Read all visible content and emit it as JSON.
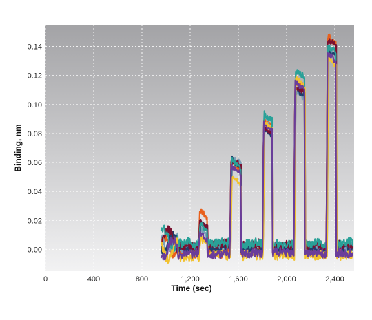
{
  "chart_data": {
    "type": "line",
    "title": "",
    "xlabel": "Time (sec)",
    "ylabel": "Binding, nm",
    "xlim": [
      0,
      2560
    ],
    "ylim": [
      -0.015,
      0.155
    ],
    "x_ticks": [
      0,
      400,
      800,
      1200,
      1600,
      2000,
      2400
    ],
    "x_tick_labels": [
      "0",
      "400",
      "800",
      "1,200",
      "1,600",
      "2,000",
      "2,400"
    ],
    "y_ticks": [
      0.0,
      0.02,
      0.04,
      0.06,
      0.08,
      0.1,
      0.12,
      0.14
    ],
    "y_tick_labels": [
      "0.00",
      "0.02",
      "0.04",
      "0.06",
      "0.08",
      "0.10",
      "0.12",
      "0.14"
    ],
    "grid": true,
    "background": "gray gradient (dark top to light bottom)",
    "injection_windows": [
      {
        "start": 1270,
        "end": 1340
      },
      {
        "start": 1530,
        "end": 1620
      },
      {
        "start": 1800,
        "end": 1880
      },
      {
        "start": 2060,
        "end": 2150
      },
      {
        "start": 2330,
        "end": 2410
      }
    ],
    "series": [
      {
        "color": "#e8601c",
        "baseline": -0.002,
        "plateaus": [
          0.027,
          0.06,
          0.09,
          0.116,
          0.148
        ]
      },
      {
        "color": "#7aa0b8",
        "baseline": 0.002,
        "plateaus": [
          0.015,
          0.064,
          0.088,
          0.11,
          0.14
        ]
      },
      {
        "color": "#1f3f6b",
        "baseline": 0.0,
        "plateaus": [
          0.02,
          0.063,
          0.085,
          0.112,
          0.138
        ]
      },
      {
        "color": "#7a1030",
        "baseline": 0.003,
        "plateaus": [
          0.022,
          0.062,
          0.086,
          0.114,
          0.146
        ]
      },
      {
        "color": "#2aa198",
        "baseline": 0.004,
        "plateaus": [
          0.018,
          0.062,
          0.095,
          0.124,
          0.142
        ]
      },
      {
        "color": "#f2c230",
        "baseline": -0.004,
        "plateaus": [
          0.01,
          0.05,
          0.088,
          0.118,
          0.133
        ]
      },
      {
        "color": "#6a3d9a",
        "baseline": -0.003,
        "plateaus": [
          0.012,
          0.058,
          0.087,
          0.116,
          0.136
        ]
      }
    ]
  }
}
